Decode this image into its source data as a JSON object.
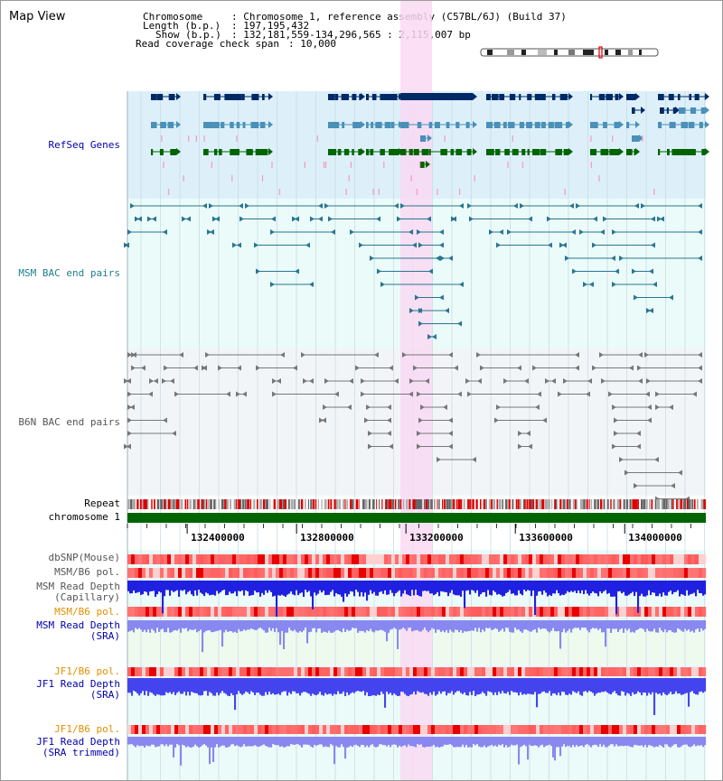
{
  "view_title": "Map View",
  "info": {
    "chromosome_key": "Chromosome",
    "chromosome_val": ": Chromosome 1, reference assembly (C57BL/6J) (Build 37)",
    "length_key": "Length (b.p.)",
    "length_val": ": 197,195,432",
    "show_key": "Show (b.p.)",
    "show_val": ": 132,181,559-134,296,565 : 2,115,007 bp",
    "coverage_key": "Read coverage check span",
    "coverage_val": ": 10,000"
  },
  "tracks": {
    "refseq": "RefSeq Genes",
    "msm_bac": "MSM BAC end pairs",
    "b6n_bac": "B6N BAC end pairs",
    "repeat": "Repeat",
    "chromosome": "chromosome 1",
    "dbsnp": "dbSNP(Mouse)",
    "msm_b6_pol": "MSM/B6 pol.",
    "msm_depth_cap": "MSM Read Depth\n(Capillary)",
    "msm_b6_pol2": "MSM/B6 pol.",
    "msm_depth_sra": "MSM Read Depth\n(SRA)",
    "jf1_b6_pol": "JF1/B6 pol.",
    "jf1_depth_sra": "JF1 Read Depth\n(SRA)",
    "jf1_b6_pol2": "JF1/B6 pol.",
    "jf1_depth_trim": "JF1 Read Depth\n(SRA trimmed)"
  },
  "axis_ticks": [
    132400000,
    132800000,
    133200000,
    133600000,
    134000000
  ],
  "colors": {
    "refseq_bg": "#ddf0fa",
    "bac_bg": "#ebfbf9",
    "b6n_bg": "#f2f5f7",
    "lower_bg": "#ebfbf9",
    "sra_bg": "#eefaee",
    "highlight": "#f9d9f3",
    "grid": "#c9dce8",
    "chrom_bar": "#006400",
    "gene_navy": "#002a66",
    "gene_steel": "#4a90b8",
    "gene_green": "#006400",
    "gene_pink": "#f2a0c0",
    "bac_msm": "#2a7590",
    "bac_b6n": "#777777",
    "depth_blue": "#2020e0",
    "depth_light": "#8888f0",
    "label_blue": "#0000aa",
    "label_teal": "#1f7f8f",
    "label_gray": "#555555",
    "label_orange": "#e09000"
  }
}
